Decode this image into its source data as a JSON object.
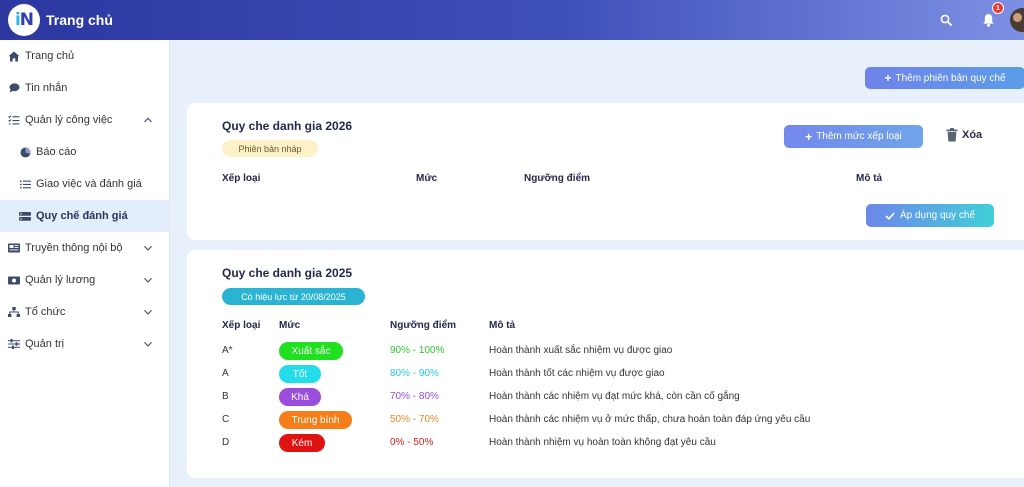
{
  "app": {
    "title": "Trang chủ",
    "logo_text": "iN"
  },
  "header": {
    "notification_count": "1"
  },
  "sidebar": {
    "items": [
      {
        "label": "Trang chủ",
        "icon": "home-icon"
      },
      {
        "label": "Tin nhắn",
        "icon": "chat-icon"
      },
      {
        "label": "Quản lý công việc",
        "icon": "tasks-icon",
        "expanded": true
      },
      {
        "label": "Báo cáo",
        "icon": "report-icon",
        "sub": true
      },
      {
        "label": "Giao việc và đánh giá",
        "icon": "list-icon",
        "sub": true
      },
      {
        "label": "Quy chế đánh giá",
        "icon": "rules-icon",
        "sub": true,
        "active": true
      },
      {
        "label": "Truyền thông nội bộ",
        "icon": "news-icon"
      },
      {
        "label": "Quản lý lương",
        "icon": "salary-icon"
      },
      {
        "label": "Tổ chức",
        "icon": "org-icon"
      },
      {
        "label": "Quản trị",
        "icon": "admin-icon"
      }
    ]
  },
  "main": {
    "add_version_label": "Thêm phiên bản quy chế",
    "versions": [
      {
        "title": "Quy che danh gia 2026",
        "status": "Phiên bản nháp",
        "add_level_label": "Thêm mức xếp loại",
        "delete_label": "Xóa",
        "apply_label": "Áp dụng quy chế",
        "headers": {
          "grade": "Xếp loại",
          "level": "Mức",
          "threshold": "Ngưỡng điểm",
          "description": "Mô tả"
        }
      },
      {
        "title": "Quy che danh gia 2025",
        "status": "Có hiệu lực từ 20/08/2025",
        "headers": {
          "grade": "Xếp loại",
          "level": "Mức",
          "threshold": "Ngưỡng điểm",
          "description": "Mô tả"
        },
        "rows": [
          {
            "grade": "A*",
            "level": "Xuất sắc",
            "threshold": "90% - 100%",
            "description": "Hoàn thành xuất sắc nhiệm vụ được giao",
            "color": "#1fe11f",
            "text_color": "#2fc52f"
          },
          {
            "grade": "A",
            "level": "Tốt",
            "threshold": "80% - 90%",
            "description": "Hoàn thành tốt các nhiệm vụ được giao",
            "color": "#25dcea",
            "text_color": "#25c8dc"
          },
          {
            "grade": "B",
            "level": "Khá",
            "threshold": "70% - 80%",
            "description": "Hoàn thành các nhiệm vụ đạt mức khá, còn cần cố gắng",
            "color": "#9b4ddb",
            "text_color": "#9b4ddb"
          },
          {
            "grade": "C",
            "level": "Trung bình",
            "threshold": "50% - 70%",
            "description": "Hoàn thành các nhiệm vụ ở mức thấp, chưa hoàn toàn đáp ứng yêu cầu",
            "color": "#f57e1a",
            "text_color": "#e8891f"
          },
          {
            "grade": "D",
            "level": "Kém",
            "threshold": "0% - 50%",
            "description": "Hoàn thành nhiệm vụ hoàn toàn không đạt yêu cầu",
            "color": "#e01313",
            "text_color": "#d42020"
          }
        ]
      }
    ]
  }
}
